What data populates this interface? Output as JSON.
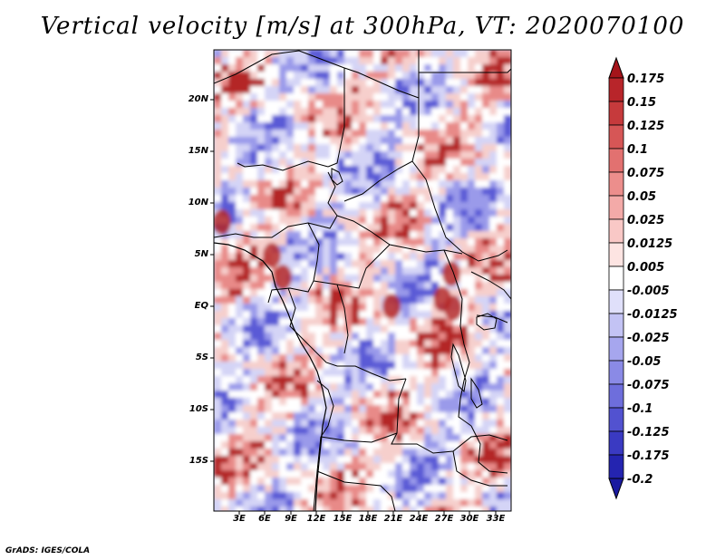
{
  "title": "Vertical velocity [m/s] at 300hPa, VT: 2020070100",
  "credit": "GrADS: IGES/COLA",
  "map": {
    "lat_ticks": [
      "20N",
      "15N",
      "10N",
      "5N",
      "EQ",
      "5S",
      "10S",
      "15S"
    ],
    "lon_ticks": [
      "3E",
      "6E",
      "9E",
      "12E",
      "15E",
      "18E",
      "21E",
      "24E",
      "27E",
      "30E",
      "33E"
    ]
  },
  "colorbar": {
    "labels": [
      "0.175",
      "0.15",
      "0.125",
      "0.1",
      "0.075",
      "0.05",
      "0.025",
      "0.0125",
      "0.005",
      "-0.005",
      "-0.0125",
      "-0.025",
      "-0.05",
      "-0.075",
      "-0.1",
      "-0.125",
      "-0.175",
      "-0.2"
    ],
    "colors": [
      "#a5141a",
      "#b8252a",
      "#c63a3c",
      "#d65656",
      "#e27170",
      "#ec8e8c",
      "#f3aaa8",
      "#f9c8c6",
      "#fde4e2",
      "#ffffff",
      "#e0e0fa",
      "#c3c3f4",
      "#a6a6ee",
      "#8a8ae6",
      "#6e6edc",
      "#5252d0",
      "#3a3ac2",
      "#2424b0",
      "#1a1aa0"
    ]
  },
  "field_colors": {
    "strong_red": "#b42828",
    "red": "#e88a88",
    "pale_red": "#f6cfcc",
    "white": "#ffffff",
    "pale_blue": "#d4d4f6",
    "blue": "#9a9aea",
    "strong_blue": "#5a5ad6"
  }
}
